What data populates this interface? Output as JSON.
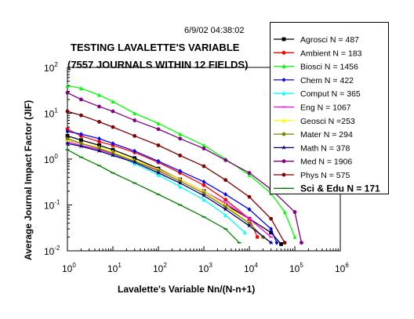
{
  "timestamp": "6/9/02 04:38:02",
  "chart_data": {
    "type": "scatter",
    "title": "TESTING LAVALETTE'S VARIABLE",
    "subtitle": "(7557 JOURNALS WITHIN 12 FIELDS)",
    "xlabel": "Lavalette's Variable Nn/(N-n+1)",
    "ylabel": "Average Journal Impact Factor (JIF)",
    "x_scale": "log",
    "y_scale": "log",
    "xlim": [
      1,
      1000000
    ],
    "ylim": [
      0.01,
      100
    ],
    "x_ticks": [
      {
        "value": 1,
        "base": "10",
        "exp": "0"
      },
      {
        "value": 10,
        "base": "10",
        "exp": "1"
      },
      {
        "value": 100,
        "base": "10",
        "exp": "2"
      },
      {
        "value": 1000,
        "base": "10",
        "exp": "3"
      },
      {
        "value": 10000,
        "base": "10",
        "exp": "4"
      },
      {
        "value": 100000,
        "base": "10",
        "exp": "5"
      },
      {
        "value": 1000000,
        "base": "10",
        "exp": "6"
      }
    ],
    "y_ticks": [
      {
        "value": 0.01,
        "base": "10",
        "exp": "-2"
      },
      {
        "value": 0.1,
        "base": "10",
        "exp": "-1"
      },
      {
        "value": 1,
        "base": "10",
        "exp": "0"
      },
      {
        "value": 10,
        "base": "10",
        "exp": "1"
      },
      {
        "value": 100,
        "base": "10",
        "exp": "2"
      }
    ],
    "grid": false,
    "legend_position": "top-right",
    "series": [
      {
        "name": "Agrosci N = 487",
        "color": "#000000",
        "marker": "square",
        "points": [
          [
            1,
            3.2
          ],
          [
            2,
            2.6
          ],
          [
            5,
            2.0
          ],
          [
            10,
            1.6
          ],
          [
            30,
            1.05
          ],
          [
            100,
            0.62
          ],
          [
            300,
            0.36
          ],
          [
            1000,
            0.2
          ],
          [
            3000,
            0.1
          ],
          [
            10000,
            0.05
          ],
          [
            30000,
            0.025
          ],
          [
            50000,
            0.014
          ]
        ]
      },
      {
        "name": "Ambient N = 183",
        "color": "#ff0000",
        "marker": "circle",
        "points": [
          [
            1,
            4.5
          ],
          [
            2,
            3.2
          ],
          [
            5,
            2.4
          ],
          [
            10,
            2.0
          ],
          [
            30,
            1.4
          ],
          [
            100,
            0.85
          ],
          [
            300,
            0.5
          ],
          [
            1000,
            0.27
          ],
          [
            3000,
            0.13
          ],
          [
            10000,
            0.05
          ],
          [
            15000,
            0.02
          ]
        ]
      },
      {
        "name": "Biosci N = 1456",
        "color": "#00ff00",
        "marker": "triangle",
        "points": [
          [
            1,
            40
          ],
          [
            2,
            35
          ],
          [
            5,
            25
          ],
          [
            10,
            18
          ],
          [
            30,
            10
          ],
          [
            100,
            6
          ],
          [
            300,
            3.5
          ],
          [
            1000,
            2.0
          ],
          [
            3000,
            1.0
          ],
          [
            10000,
            0.45
          ],
          [
            30000,
            0.18
          ],
          [
            60000,
            0.07
          ],
          [
            100000,
            0.02
          ]
        ]
      },
      {
        "name": "Chem N = 422",
        "color": "#0000ff",
        "marker": "diamond",
        "points": [
          [
            1,
            4
          ],
          [
            2,
            3.5
          ],
          [
            5,
            2.8
          ],
          [
            10,
            2.2
          ],
          [
            30,
            1.5
          ],
          [
            100,
            0.9
          ],
          [
            300,
            0.55
          ],
          [
            1000,
            0.32
          ],
          [
            3000,
            0.17
          ],
          [
            10000,
            0.08
          ],
          [
            30000,
            0.03
          ],
          [
            40000,
            0.015
          ]
        ]
      },
      {
        "name": "Comput N = 365",
        "color": "#00ffff",
        "marker": "triangle",
        "points": [
          [
            1,
            2.8
          ],
          [
            2,
            2.2
          ],
          [
            5,
            1.7
          ],
          [
            10,
            1.3
          ],
          [
            30,
            0.8
          ],
          [
            100,
            0.45
          ],
          [
            300,
            0.25
          ],
          [
            1000,
            0.13
          ],
          [
            3000,
            0.06
          ],
          [
            8000,
            0.025
          ]
        ]
      },
      {
        "name": "Eng N = 1067",
        "color": "#ff00ff",
        "marker": "dash",
        "points": [
          [
            1,
            2.4
          ],
          [
            2,
            2.0
          ],
          [
            5,
            1.6
          ],
          [
            10,
            1.3
          ],
          [
            30,
            0.9
          ],
          [
            100,
            0.58
          ],
          [
            300,
            0.36
          ],
          [
            1000,
            0.2
          ],
          [
            3000,
            0.11
          ],
          [
            10000,
            0.05
          ],
          [
            30000,
            0.02
          ]
        ]
      },
      {
        "name": "Geosci N =253",
        "color": "#ffff00",
        "marker": "triangle",
        "points": [
          [
            1,
            2.6
          ],
          [
            2,
            2.2
          ],
          [
            5,
            1.8
          ],
          [
            10,
            1.45
          ],
          [
            30,
            0.95
          ],
          [
            100,
            0.6
          ],
          [
            300,
            0.36
          ],
          [
            1000,
            0.2
          ],
          [
            3000,
            0.1
          ],
          [
            10000,
            0.04
          ],
          [
            20000,
            0.02
          ]
        ]
      },
      {
        "name": "Mater N = 294",
        "color": "#808000",
        "marker": "circle",
        "points": [
          [
            1,
            2.8
          ],
          [
            2,
            2.2
          ],
          [
            5,
            1.7
          ],
          [
            10,
            1.35
          ],
          [
            30,
            0.9
          ],
          [
            100,
            0.55
          ],
          [
            300,
            0.33
          ],
          [
            1000,
            0.18
          ],
          [
            3000,
            0.09
          ],
          [
            10000,
            0.04
          ],
          [
            20000,
            0.02
          ]
        ]
      },
      {
        "name": "Math N = 378",
        "color": "#000080",
        "marker": "star",
        "points": [
          [
            1,
            2.2
          ],
          [
            2,
            1.9
          ],
          [
            5,
            1.5
          ],
          [
            10,
            1.2
          ],
          [
            30,
            0.85
          ],
          [
            100,
            0.5
          ],
          [
            300,
            0.3
          ],
          [
            1000,
            0.16
          ],
          [
            3000,
            0.08
          ],
          [
            10000,
            0.035
          ],
          [
            30000,
            0.015
          ]
        ]
      },
      {
        "name": "Med N = 1906",
        "color": "#800080",
        "marker": "circle",
        "points": [
          [
            1,
            28
          ],
          [
            2,
            20
          ],
          [
            5,
            14
          ],
          [
            10,
            11
          ],
          [
            30,
            7
          ],
          [
            100,
            4.5
          ],
          [
            300,
            2.8
          ],
          [
            1000,
            1.7
          ],
          [
            3000,
            0.95
          ],
          [
            10000,
            0.5
          ],
          [
            30000,
            0.22
          ],
          [
            100000,
            0.07
          ],
          [
            140000,
            0.015
          ]
        ]
      },
      {
        "name": "Phys N = 575",
        "color": "#800000",
        "marker": "circle",
        "points": [
          [
            1,
            11
          ],
          [
            2,
            9
          ],
          [
            5,
            6.5
          ],
          [
            10,
            5
          ],
          [
            30,
            3.2
          ],
          [
            100,
            2.0
          ],
          [
            300,
            1.2
          ],
          [
            1000,
            0.7
          ],
          [
            3000,
            0.35
          ],
          [
            10000,
            0.15
          ],
          [
            30000,
            0.05
          ],
          [
            60000,
            0.015
          ]
        ]
      },
      {
        "name": "Sci & Edu N = 171",
        "color": "#008000",
        "marker": "dash",
        "points": [
          [
            1,
            1.6
          ],
          [
            2,
            1.1
          ],
          [
            5,
            0.72
          ],
          [
            10,
            0.5
          ],
          [
            30,
            0.3
          ],
          [
            100,
            0.17
          ],
          [
            300,
            0.1
          ],
          [
            1000,
            0.055
          ],
          [
            3000,
            0.03
          ],
          [
            6000,
            0.015
          ]
        ]
      }
    ]
  }
}
